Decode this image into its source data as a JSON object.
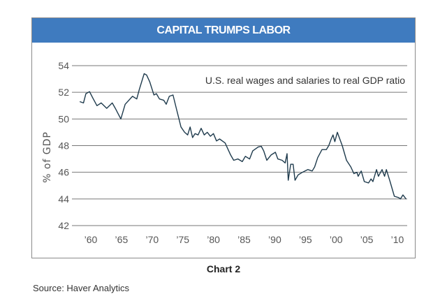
{
  "chart_data": {
    "type": "line",
    "title": "CAPITAL TRUMPS LABOR",
    "annotation": "U.S. real wages and salaries to real GDP ratio",
    "ylabel": "% of GDP",
    "xlabel": "",
    "ylim": [
      42,
      54
    ],
    "xlim": [
      1957,
      2012
    ],
    "yticks": [
      42,
      44,
      46,
      48,
      50,
      52,
      54
    ],
    "xticks": [
      {
        "value": 1960,
        "label": "’60"
      },
      {
        "value": 1965,
        "label": "’65"
      },
      {
        "value": 1970,
        "label": "’70"
      },
      {
        "value": 1975,
        "label": "’75"
      },
      {
        "value": 1980,
        "label": "’80"
      },
      {
        "value": 1985,
        "label": "’85"
      },
      {
        "value": 1990,
        "label": "’90"
      },
      {
        "value": 1995,
        "label": "’95"
      },
      {
        "value": 2000,
        "label": "’00"
      },
      {
        "value": 2005,
        "label": "’05"
      },
      {
        "value": 2010,
        "label": "’10"
      }
    ],
    "grid": true,
    "line_color": "#1f3b4d",
    "header_color": "#3f7bbf",
    "series": [
      {
        "x": [
          1958.2,
          1958.8,
          1959.2,
          1959.8,
          1960.3,
          1961,
          1961.7,
          1962.6,
          1963.5,
          1964,
          1964.9,
          1965.6,
          1966.8,
          1967.5,
          1967.9,
          1968.7,
          1969.1,
          1969.6,
          1970.3,
          1970.7,
          1971.2,
          1971.9,
          1972.3,
          1972.8,
          1973.4,
          1974,
          1974.7,
          1975.3,
          1975.8,
          1976.2,
          1976.6,
          1977,
          1977.5,
          1978,
          1978.5,
          1979,
          1979.5,
          1980,
          1980.5,
          1981,
          1981.9,
          1982.8,
          1983.3,
          1984,
          1984.7,
          1985.2,
          1985.9,
          1986.4,
          1987.3,
          1987.8,
          1988.2,
          1988.7,
          1989.4,
          1990.1,
          1990.5,
          1991.2,
          1991.7,
          1992,
          1992.2,
          1992.6,
          1993,
          1993.3,
          1993.8,
          1994.5,
          1995.4,
          1996.1,
          1996.5,
          1997,
          1997.7,
          1998.4,
          1998.8,
          1999.2,
          1999.5,
          1999.8,
          2000.2,
          2000.6,
          2001,
          2001.7,
          2002.4,
          2002.9,
          2003.4,
          2003.6,
          2004.1,
          2004.6,
          2005.3,
          2005.7,
          2006,
          2006.6,
          2006.9,
          2007.5,
          2007.9,
          2008.2,
          2008.8,
          2009.5,
          2010.2,
          2010.5,
          2010.9,
          2011.4
        ],
        "y": [
          51.3,
          51.2,
          51.9,
          52.05,
          51.6,
          51.0,
          51.2,
          50.8,
          51.2,
          50.8,
          50.0,
          51.1,
          51.7,
          51.5,
          52.2,
          53.4,
          53.3,
          52.8,
          51.8,
          51.9,
          51.5,
          51.4,
          51.1,
          51.7,
          51.8,
          50.7,
          49.4,
          49.0,
          48.8,
          49.4,
          48.6,
          48.9,
          48.8,
          49.3,
          48.8,
          49.0,
          48.7,
          48.9,
          48.35,
          48.5,
          48.2,
          47.3,
          46.9,
          47.0,
          46.8,
          47.2,
          47.0,
          47.6,
          47.9,
          47.95,
          47.6,
          46.9,
          47.3,
          47.5,
          47.0,
          46.9,
          46.7,
          47.4,
          45.4,
          46.6,
          46.6,
          45.4,
          45.8,
          46.0,
          46.2,
          46.1,
          46.4,
          47.1,
          47.7,
          47.7,
          48.0,
          48.5,
          48.8,
          48.3,
          49.0,
          48.5,
          48.0,
          46.9,
          46.4,
          45.9,
          46.0,
          45.7,
          46.1,
          45.3,
          45.2,
          45.5,
          45.3,
          46.2,
          45.7,
          46.2,
          45.7,
          46.2,
          45.3,
          44.2,
          44.1,
          44.0,
          44.3,
          44.0
        ]
      }
    ]
  },
  "caption": "Chart 2",
  "source": "Source: Haver Analytics"
}
